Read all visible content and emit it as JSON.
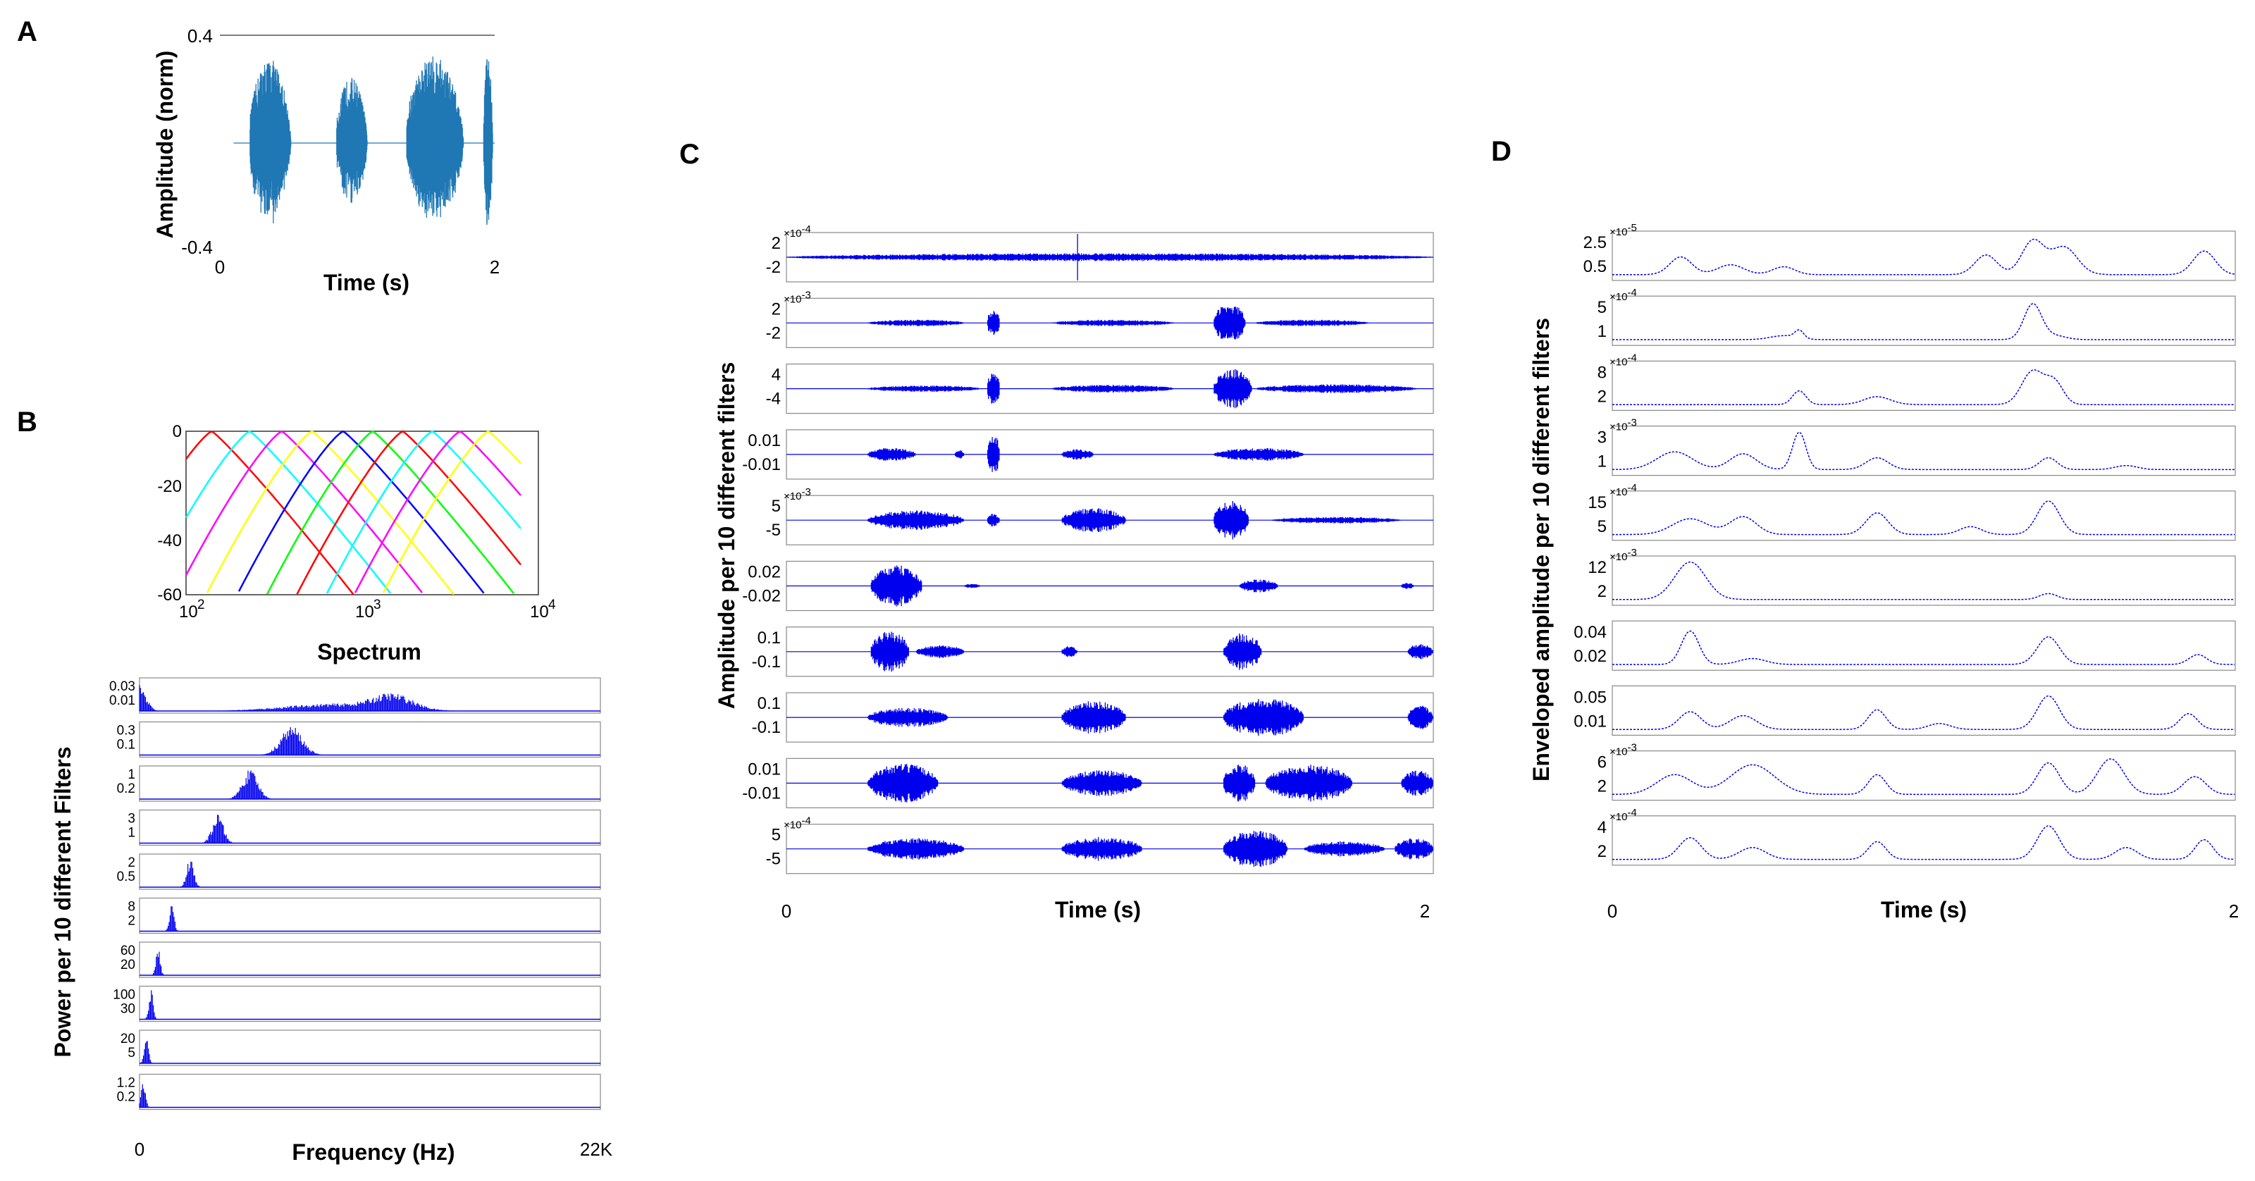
{
  "colors": {
    "waveform_A": "#1f77b4",
    "series_blue": "#0000ee",
    "filter_colors": [
      "#ff0000",
      "#00ffff",
      "#ff00ff",
      "#ffff00",
      "#0000ff",
      "#00ff00",
      "#ff0000",
      "#00ffff",
      "#ff00ff",
      "#ffff00"
    ]
  },
  "chart_data": [
    {
      "id": "A",
      "type": "line",
      "panel_label": "A",
      "xlabel": "Time (s)",
      "ylabel": "Amplitude (norm)",
      "xlim": [
        0,
        2
      ],
      "ylim": [
        -0.4,
        0.4
      ],
      "x_ticks": [
        "0",
        "2"
      ],
      "y_ticks": [
        "0.4",
        "-0.4"
      ],
      "bursts": [
        {
          "start": 0.22,
          "end": 0.58,
          "amp": 0.32
        },
        {
          "start": 0.85,
          "end": 1.12,
          "amp": 0.25
        },
        {
          "start": 1.36,
          "end": 1.86,
          "amp": 0.33
        },
        {
          "start": 1.92,
          "end": 2.0,
          "amp": 0.34
        }
      ]
    },
    {
      "id": "B_top",
      "type": "line",
      "panel_label": "B",
      "title": "Spectrum",
      "xscale": "log",
      "xlim": [
        100,
        10000
      ],
      "ylim": [
        -60,
        0
      ],
      "x_ticks": [
        {
          "base": "10",
          "exp": "2"
        },
        {
          "base": "10",
          "exp": "3"
        },
        {
          "base": "10",
          "exp": "4"
        }
      ],
      "y_ticks": [
        "0",
        "-20",
        "-40",
        "-60"
      ],
      "filter_centers_hz": [
        140,
        230,
        350,
        520,
        780,
        1150,
        1700,
        2500,
        3600,
        5200
      ]
    },
    {
      "id": "B_bottom",
      "type": "bar",
      "xlabel": "Frequency (Hz)",
      "ylabel": "Power per 10 different  Filters",
      "x_ticks": [
        "0",
        "22K"
      ],
      "subplots": [
        {
          "y_ticks": [
            "0.03",
            "0.01"
          ],
          "peak_frac": 0.5
        },
        {
          "y_ticks": [
            "0.3",
            "0.1"
          ],
          "peak_frac": 0.33
        },
        {
          "y_ticks": [
            "1",
            "0.2"
          ],
          "peak_frac": 0.24
        },
        {
          "y_ticks": [
            "3",
            "1"
          ],
          "peak_frac": 0.17
        },
        {
          "y_ticks": [
            "2",
            "0.5"
          ],
          "peak_frac": 0.11
        },
        {
          "y_ticks": [
            "8",
            "2"
          ],
          "peak_frac": 0.07
        },
        {
          "y_ticks": [
            "60",
            "20"
          ],
          "peak_frac": 0.04
        },
        {
          "y_ticks": [
            "100",
            "30"
          ],
          "peak_frac": 0.025
        },
        {
          "y_ticks": [
            "20",
            "5"
          ],
          "peak_frac": 0.015
        },
        {
          "y_ticks": [
            "1.2",
            "0.2"
          ],
          "peak_frac": 0.008
        }
      ]
    },
    {
      "id": "C",
      "type": "line",
      "panel_label": "C",
      "xlabel": "Time (s)",
      "ylabel": "Amplitude per 10 different filters",
      "xlim": [
        0,
        2
      ],
      "x_ticks": [
        "0",
        "Time (s)",
        "2"
      ],
      "subplots": [
        {
          "y_ticks": [
            "2",
            "-2"
          ],
          "exp": "-4"
        },
        {
          "y_ticks": [
            "2",
            "-2"
          ],
          "exp": "-3"
        },
        {
          "y_ticks": [
            "4",
            "-4"
          ],
          "exp": ""
        },
        {
          "y_ticks": [
            "0.01",
            "-0.01"
          ],
          "exp": ""
        },
        {
          "y_ticks": [
            "5",
            "-5"
          ],
          "exp": "-3"
        },
        {
          "y_ticks": [
            "0.02",
            "-0.02"
          ],
          "exp": ""
        },
        {
          "y_ticks": [
            "0.1",
            "-0.1"
          ],
          "exp": ""
        },
        {
          "y_ticks": [
            "0.1",
            "-0.1"
          ],
          "exp": ""
        },
        {
          "y_ticks": [
            "0.01",
            "-0.01"
          ],
          "exp": ""
        },
        {
          "y_ticks": [
            "5",
            "-5"
          ],
          "exp": "-4"
        }
      ]
    },
    {
      "id": "D",
      "type": "line",
      "panel_label": "D",
      "xlabel": "Time (s)",
      "ylabel": "Enveloped amplitude per 10 different filters",
      "xlim": [
        0,
        2
      ],
      "x_ticks": [
        "0",
        "Time (s)",
        "2"
      ],
      "subplots": [
        {
          "y_ticks": [
            "2.5",
            "0.5"
          ],
          "exp": "-5"
        },
        {
          "y_ticks": [
            "5",
            "1"
          ],
          "exp": "-4"
        },
        {
          "y_ticks": [
            "8",
            "2"
          ],
          "exp": "-4"
        },
        {
          "y_ticks": [
            "3",
            "1"
          ],
          "exp": "-3"
        },
        {
          "y_ticks": [
            "15",
            "5"
          ],
          "exp": "-4"
        },
        {
          "y_ticks": [
            "12",
            "2"
          ],
          "exp": "-3"
        },
        {
          "y_ticks": [
            "0.04",
            "0.02"
          ],
          "exp": ""
        },
        {
          "y_ticks": [
            "0.05",
            "0.01"
          ],
          "exp": ""
        },
        {
          "y_ticks": [
            "6",
            "2"
          ],
          "exp": "-3"
        },
        {
          "y_ticks": [
            "4",
            "2"
          ],
          "exp": "-4"
        }
      ]
    }
  ]
}
